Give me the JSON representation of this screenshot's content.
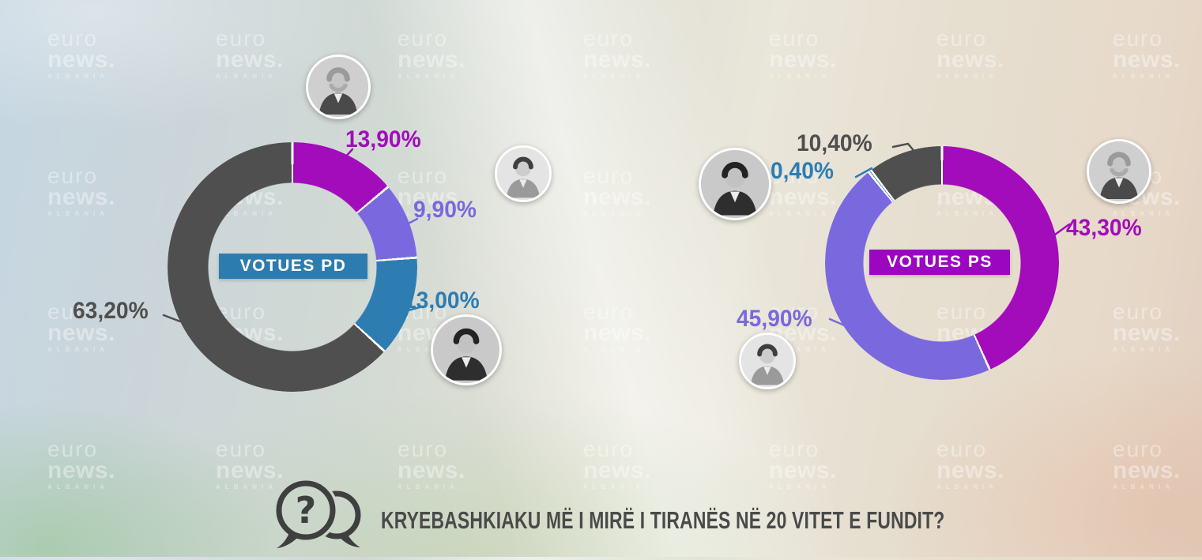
{
  "watermark": {
    "line1": "euro",
    "line2": "news.",
    "line3": "ALBANIA"
  },
  "question": {
    "text": "KRYEBASHKIAKU MË I MIRË I TIRANËS NË 20 VITET E FUNDIT?",
    "icon": "question-speech-bubbles-icon",
    "text_color": "#4a4a4a"
  },
  "colors": {
    "magenta": "#a30cbb",
    "light_purple": "#7a68de",
    "blue": "#2d7db3",
    "dark_gray": "#545454",
    "pd_badge": "#2d7cb0",
    "ps_badge": "#9b07c0"
  },
  "chart_data": [
    {
      "type": "donut",
      "title": "VOTUES PD",
      "title_bg": "#2d7cb0",
      "units": "%",
      "start_angle_deg": 0,
      "direction": "clockwise",
      "segments": [
        {
          "label": "13,90%",
          "value": 13.9,
          "color": "#a30cbb",
          "avatar": "bearded-man"
        },
        {
          "label": "9,90%",
          "value": 9.9,
          "color": "#7a68de",
          "avatar": "young-man"
        },
        {
          "label": "13,00%",
          "value": 13.0,
          "color": "#2d7db3",
          "avatar": "dark-haired-man"
        },
        {
          "label": "63,20%",
          "value": 63.2,
          "color": "#4f4f4f",
          "avatar": null
        }
      ]
    },
    {
      "type": "donut",
      "title": "VOTUES PS",
      "title_bg": "#9b07c0",
      "units": "%",
      "start_angle_deg": 0,
      "direction": "clockwise",
      "segments": [
        {
          "label": "43,30%",
          "value": 43.3,
          "color": "#a30cbb",
          "avatar": "bearded-man"
        },
        {
          "label": "45,90%",
          "value": 45.9,
          "color": "#7a68de",
          "avatar": "young-man"
        },
        {
          "label": "0,40%",
          "value": 0.4,
          "color": "#2d7db3",
          "avatar": "dark-haired-man"
        },
        {
          "label": "10,40%",
          "value": 10.4,
          "color": "#4f4f4f",
          "avatar": null
        }
      ]
    }
  ]
}
